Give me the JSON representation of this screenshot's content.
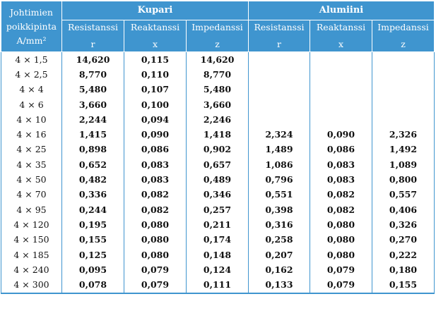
{
  "header": {
    "first_col": [
      "Johtimien",
      "poikkipinta",
      "A/mm²"
    ],
    "groups": [
      "Kupari",
      "Alumiini"
    ],
    "subheaders": [
      {
        "label": "Resistanssi",
        "symbol": "r"
      },
      {
        "label": "Reaktanssi",
        "symbol": "x"
      },
      {
        "label": "Impedanssi",
        "symbol": "z"
      },
      {
        "label": "Resistanssi",
        "symbol": "r"
      },
      {
        "label": "Reaktanssi",
        "symbol": "x"
      },
      {
        "label": "Impedanssi",
        "symbol": "z"
      }
    ]
  },
  "rows": [
    [
      "4 × 1,5",
      "14,620",
      "0,115",
      "14,620",
      "",
      "",
      ""
    ],
    [
      "4 × 2,5",
      "8,770",
      "0,110",
      "8,770",
      "",
      "",
      ""
    ],
    [
      "4 × 4",
      "5,480",
      "0,107",
      "5,480",
      "",
      "",
      ""
    ],
    [
      "4 × 6",
      "3,660",
      "0,100",
      "3,660",
      "",
      "",
      ""
    ],
    [
      "4 × 10",
      "2,244",
      "0,094",
      "2,246",
      "",
      "",
      ""
    ],
    [
      "4 × 16",
      "1,415",
      "0,090",
      "1,418",
      "2,324",
      "0,090",
      "2,326"
    ],
    [
      "4 × 25",
      "0,898",
      "0,086",
      "0,902",
      "1,489",
      "0,086",
      "1,492"
    ],
    [
      "4 × 35",
      "0,652",
      "0,083",
      "0,657",
      "1,086",
      "0,083",
      "1,089"
    ],
    [
      "4 × 50",
      "0,482",
      "0,083",
      "0,489",
      "0,796",
      "0,083",
      "0,800"
    ],
    [
      "4 × 70",
      "0,336",
      "0,082",
      "0,346",
      "0,551",
      "0,082",
      "0,557"
    ],
    [
      "4 × 95",
      "0,244",
      "0,082",
      "0,257",
      "0,398",
      "0,082",
      "0,406"
    ],
    [
      "4 × 120",
      "0,195",
      "0,080",
      "0,211",
      "0,316",
      "0,080",
      "0,326"
    ],
    [
      "4 × 150",
      "0,155",
      "0,080",
      "0,174",
      "0,258",
      "0,080",
      "0,270"
    ],
    [
      "4 × 185",
      "0,125",
      "0,080",
      "0,148",
      "0,207",
      "0,080",
      "0,222"
    ],
    [
      "4 × 240",
      "0,095",
      "0,079",
      "0,124",
      "0,162",
      "0,079",
      "0,180"
    ],
    [
      "4 × 300",
      "0,078",
      "0,079",
      "0,111",
      "0,133",
      "0,079",
      "0,155"
    ]
  ],
  "colors": {
    "header_bg": "#3f95cf",
    "header_text": "#ffffff",
    "border": "#3f95cf"
  }
}
